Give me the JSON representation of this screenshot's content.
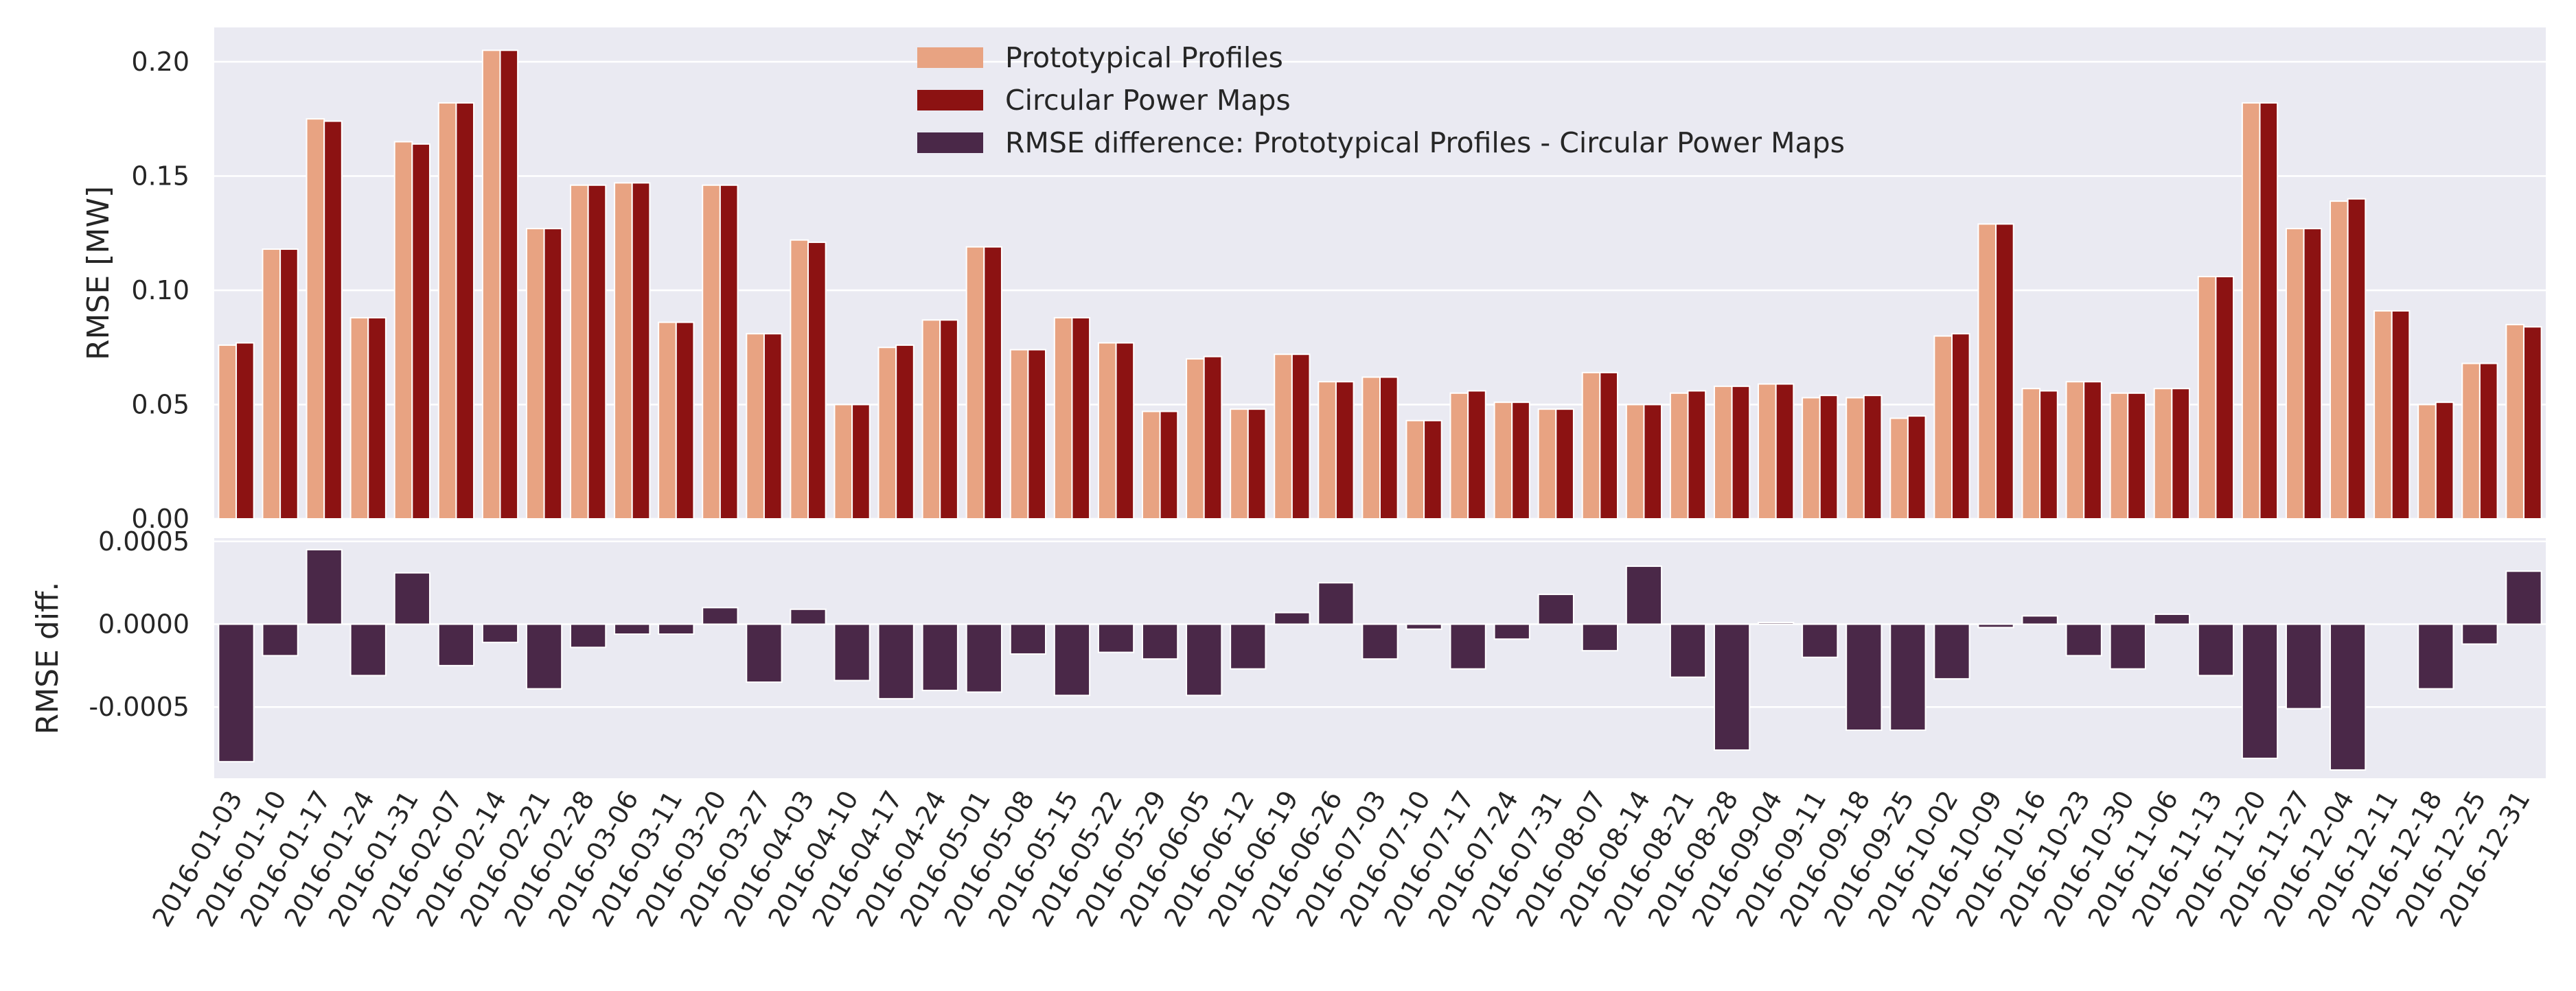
{
  "chart_data": [
    {
      "type": "bar",
      "ylabel": "RMSE [MW]",
      "ylim": [
        0,
        0.215
      ],
      "yticks": [
        "0.00",
        "0.05",
        "0.10",
        "0.15",
        "0.20"
      ],
      "ytick_values": [
        0,
        0.05,
        0.1,
        0.15,
        0.2
      ],
      "grid": true,
      "legend_position": "top-center",
      "series": [
        {
          "name": "Prototypical Profiles",
          "color": "#E8A382",
          "values": [
            0.076,
            0.118,
            0.175,
            0.088,
            0.165,
            0.182,
            0.205,
            0.127,
            0.146,
            0.147,
            0.086,
            0.146,
            0.081,
            0.122,
            0.05,
            0.075,
            0.087,
            0.119,
            0.074,
            0.088,
            0.077,
            0.047,
            0.07,
            0.048,
            0.072,
            0.06,
            0.062,
            0.043,
            0.055,
            0.051,
            0.048,
            0.064,
            0.05,
            0.055,
            0.058,
            0.059,
            0.053,
            0.053,
            0.044,
            0.08,
            0.129,
            0.057,
            0.06,
            0.055,
            0.057,
            0.106,
            0.182,
            0.127,
            0.139,
            0.091,
            0.05,
            0.068,
            0.085
          ]
        },
        {
          "name": "Circular Power Maps",
          "color": "#8C1212",
          "values": [
            0.077,
            0.118,
            0.174,
            0.088,
            0.164,
            0.182,
            0.205,
            0.127,
            0.146,
            0.147,
            0.086,
            0.146,
            0.081,
            0.121,
            0.05,
            0.076,
            0.087,
            0.119,
            0.074,
            0.088,
            0.077,
            0.047,
            0.071,
            0.048,
            0.072,
            0.06,
            0.062,
            0.043,
            0.056,
            0.051,
            0.048,
            0.064,
            0.05,
            0.056,
            0.058,
            0.059,
            0.054,
            0.054,
            0.045,
            0.081,
            0.129,
            0.056,
            0.06,
            0.055,
            0.057,
            0.106,
            0.182,
            0.127,
            0.14,
            0.091,
            0.051,
            0.068,
            0.084
          ]
        }
      ]
    },
    {
      "type": "bar",
      "ylabel": "RMSE diff.",
      "ylim": [
        -0.00093,
        0.00052
      ],
      "yticks": [
        "0.0005",
        "0.0000",
        "-0.0005"
      ],
      "ytick_values": [
        0.0005,
        0,
        -0.0005
      ],
      "grid": true,
      "series": [
        {
          "name": "RMSE difference: Prototypical Profiles - Circular Power Maps",
          "color": "#4A2848",
          "values": [
            -0.00083,
            -0.00019,
            0.00045,
            -0.00031,
            0.00031,
            -0.00025,
            -0.00011,
            -0.00039,
            -0.00014,
            -6e-05,
            -6e-05,
            0.0001,
            -0.00035,
            9e-05,
            -0.00034,
            -0.00045,
            -0.0004,
            -0.00041,
            -0.00018,
            -0.00043,
            -0.00017,
            -0.00021,
            -0.00043,
            -0.00027,
            7e-05,
            0.00025,
            -0.00021,
            -3e-05,
            -0.00027,
            -9e-05,
            0.00018,
            -0.00016,
            0.00035,
            -0.00032,
            -0.00076,
            1e-05,
            -0.0002,
            -0.00064,
            -0.00064,
            -0.00033,
            -2e-05,
            5e-05,
            -0.00019,
            -0.00027,
            6e-05,
            -0.00031,
            -0.00081,
            -0.00051,
            -0.00088,
            0.0,
            -0.00039,
            -0.00012,
            0.00032
          ]
        }
      ]
    }
  ],
  "categories": [
    "2016-01-03",
    "2016-01-10",
    "2016-01-17",
    "2016-01-24",
    "2016-01-31",
    "2016-02-07",
    "2016-02-14",
    "2016-02-21",
    "2016-02-28",
    "2016-03-06",
    "2016-03-11",
    "2016-03-20",
    "2016-03-27",
    "2016-04-03",
    "2016-04-10",
    "2016-04-17",
    "2016-04-24",
    "2016-05-01",
    "2016-05-08",
    "2016-05-15",
    "2016-05-22",
    "2016-05-29",
    "2016-06-05",
    "2016-06-12",
    "2016-06-19",
    "2016-06-26",
    "2016-07-03",
    "2016-07-10",
    "2016-07-17",
    "2016-07-24",
    "2016-07-31",
    "2016-08-07",
    "2016-08-14",
    "2016-08-21",
    "2016-08-28",
    "2016-09-04",
    "2016-09-11",
    "2016-09-18",
    "2016-09-25",
    "2016-10-02",
    "2016-10-09",
    "2016-10-16",
    "2016-10-23",
    "2016-10-30",
    "2016-11-06",
    "2016-11-13",
    "2016-11-20",
    "2016-11-27",
    "2016-12-04",
    "2016-12-11",
    "2016-12-18",
    "2016-12-25",
    "2016-12-31"
  ],
  "legend": {
    "entries": [
      "Prototypical Profiles",
      "Circular Power Maps",
      "RMSE difference: Prototypical Profiles - Circular Power Maps"
    ]
  },
  "colors": {
    "plot_background": "#EAEAF2",
    "proto": "#E8A382",
    "circular": "#8C1212",
    "diff": "#4A2848"
  }
}
